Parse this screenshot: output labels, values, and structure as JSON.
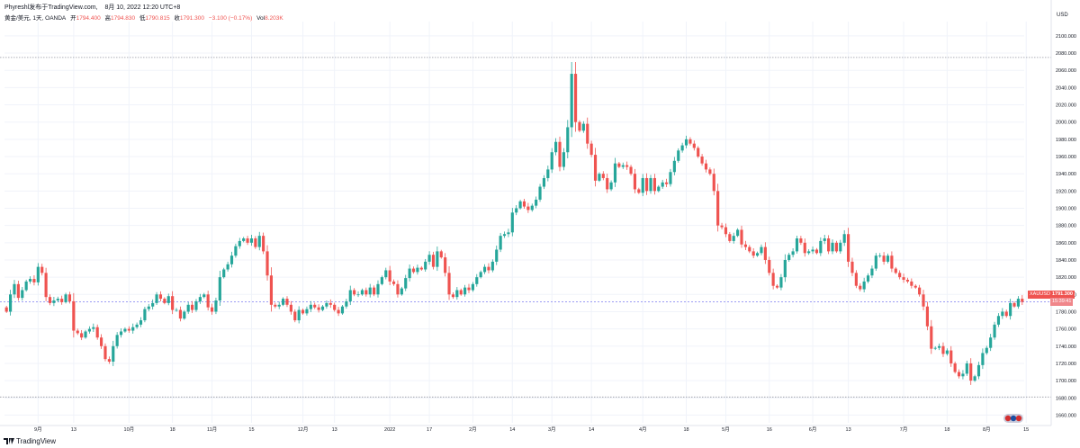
{
  "header": {
    "publisher": "Phyreshl发布于TradingView.com,",
    "timestamp": "8月 10, 2022 12:20 UTC+8"
  },
  "legend": {
    "symbol_title": "黄金/美元, 1天, OANDA",
    "open_label": "开",
    "open_value": "1794.400",
    "high_label": "高",
    "high_value": "1794.830",
    "low_label": "低",
    "low_value": "1790.815",
    "close_label": "收",
    "close_value": "1791.300",
    "change": "−3.100 (−0.17%)",
    "vol_label": "Vol",
    "vol_value": "8.203K"
  },
  "axis": {
    "currency": "USD"
  },
  "price_tag": {
    "symbol": "XAUUSD",
    "price": "1791.300",
    "countdown": "15:39:41"
  },
  "footer": {
    "brand": "TradingView"
  },
  "colors": {
    "up": "#26a69a",
    "down": "#ef5350",
    "current_line": "#7c7cf0",
    "range_line": "#9598a1",
    "grid": "#f0f3fa"
  },
  "chart_data": {
    "type": "candlestick",
    "title": "黄金/美元, 1天, OANDA",
    "ylabel": "USD",
    "ylim": [
      1640,
      2110
    ],
    "yticks": [
      1660,
      1680,
      1700,
      1720,
      1740,
      1760,
      1780,
      1800,
      1820,
      1840,
      1860,
      1880,
      1900,
      1920,
      1940,
      1960,
      1980,
      2000,
      2020,
      2040,
      2060,
      2080,
      2100
    ],
    "ytick_labels": [
      "1660.000",
      "1680.000",
      "1700.000",
      "1720.000",
      "1740.000",
      "1760.000",
      "1780.000",
      "1800.000",
      "1820.000",
      "1840.000",
      "1860.000",
      "1880.000",
      "1900.000",
      "1920.000",
      "1940.000",
      "1960.000",
      "1980.000",
      "2000.000",
      "2020.000",
      "2040.000",
      "2060.000",
      "2080.000",
      "2100.000"
    ],
    "xticks": [
      {
        "label": "9月",
        "bar": 8
      },
      {
        "label": "13",
        "bar": 17
      },
      {
        "label": "10月",
        "bar": 31
      },
      {
        "label": "18",
        "bar": 42
      },
      {
        "label": "11月",
        "bar": 52
      },
      {
        "label": "15",
        "bar": 62
      },
      {
        "label": "12月",
        "bar": 75
      },
      {
        "label": "13",
        "bar": 83
      },
      {
        "label": "2022",
        "bar": 97
      },
      {
        "label": "17",
        "bar": 107
      },
      {
        "label": "2月",
        "bar": 118
      },
      {
        "label": "14",
        "bar": 128
      },
      {
        "label": "3月",
        "bar": 138
      },
      {
        "label": "14",
        "bar": 148
      },
      {
        "label": "4月",
        "bar": 161
      },
      {
        "label": "18",
        "bar": 172
      },
      {
        "label": "5月",
        "bar": 182
      },
      {
        "label": "16",
        "bar": 193
      },
      {
        "label": "6月",
        "bar": 204
      },
      {
        "label": "13",
        "bar": 213
      },
      {
        "label": "7月",
        "bar": 227
      },
      {
        "label": "18",
        "bar": 238
      },
      {
        "label": "8月",
        "bar": 248
      },
      {
        "label": "15",
        "bar": 258
      }
    ],
    "range_high": 2075,
    "range_low": 1681,
    "current_price": 1791.3,
    "closes": [
      1780,
      1800,
      1812,
      1796,
      1805,
      1815,
      1818,
      1814,
      1832,
      1825,
      1797,
      1790,
      1793,
      1795,
      1791,
      1800,
      1792,
      1758,
      1755,
      1750,
      1757,
      1760,
      1762,
      1750,
      1740,
      1725,
      1722,
      1740,
      1753,
      1757,
      1760,
      1758,
      1762,
      1765,
      1770,
      1783,
      1786,
      1790,
      1800,
      1795,
      1790,
      1798,
      1782,
      1782,
      1772,
      1780,
      1788,
      1782,
      1792,
      1797,
      1800,
      1785,
      1780,
      1793,
      1820,
      1829,
      1835,
      1845,
      1856,
      1862,
      1865,
      1860,
      1865,
      1855,
      1868,
      1850,
      1822,
      1788,
      1786,
      1788,
      1795,
      1788,
      1780,
      1770,
      1782,
      1778,
      1783,
      1788,
      1785,
      1782,
      1786,
      1790,
      1788,
      1782,
      1778,
      1786,
      1792,
      1805,
      1800,
      1800,
      1805,
      1800,
      1808,
      1800,
      1812,
      1820,
      1828,
      1815,
      1812,
      1800,
      1807,
      1819,
      1830,
      1826,
      1831,
      1829,
      1838,
      1846,
      1832,
      1850,
      1843,
      1825,
      1800,
      1797,
      1805,
      1800,
      1808,
      1805,
      1812,
      1820,
      1826,
      1832,
      1828,
      1838,
      1852,
      1868,
      1870,
      1872,
      1895,
      1900,
      1908,
      1902,
      1898,
      1903,
      1910,
      1925,
      1935,
      1945,
      1965,
      1977,
      1948,
      1965,
      1994,
      2056,
      2000,
      1990,
      1998,
      1975,
      1962,
      1932,
      1940,
      1935,
      1922,
      1930,
      1952,
      1948,
      1950,
      1948,
      1940,
      1922,
      1918,
      1935,
      1920,
      1935,
      1920,
      1925,
      1930,
      1928,
      1942,
      1955,
      1967,
      1973,
      1980,
      1975,
      1970,
      1960,
      1952,
      1945,
      1940,
      1920,
      1880,
      1878,
      1870,
      1862,
      1868,
      1875,
      1858,
      1855,
      1850,
      1845,
      1848,
      1855,
      1840,
      1825,
      1810,
      1808,
      1820,
      1840,
      1846,
      1850,
      1865,
      1860,
      1848,
      1850,
      1852,
      1848,
      1862,
      1865,
      1850,
      1860,
      1850,
      1860,
      1870,
      1838,
      1825,
      1810,
      1806,
      1815,
      1822,
      1830,
      1845,
      1845,
      1838,
      1845,
      1830,
      1825,
      1820,
      1817,
      1815,
      1810,
      1808,
      1800,
      1786,
      1763,
      1737,
      1738,
      1740,
      1731,
      1735,
      1720,
      1710,
      1705,
      1708,
      1720,
      1700,
      1705,
      1718,
      1732,
      1738,
      1750,
      1765,
      1775,
      1780,
      1775,
      1790,
      1786,
      1795,
      1791.3
    ]
  }
}
